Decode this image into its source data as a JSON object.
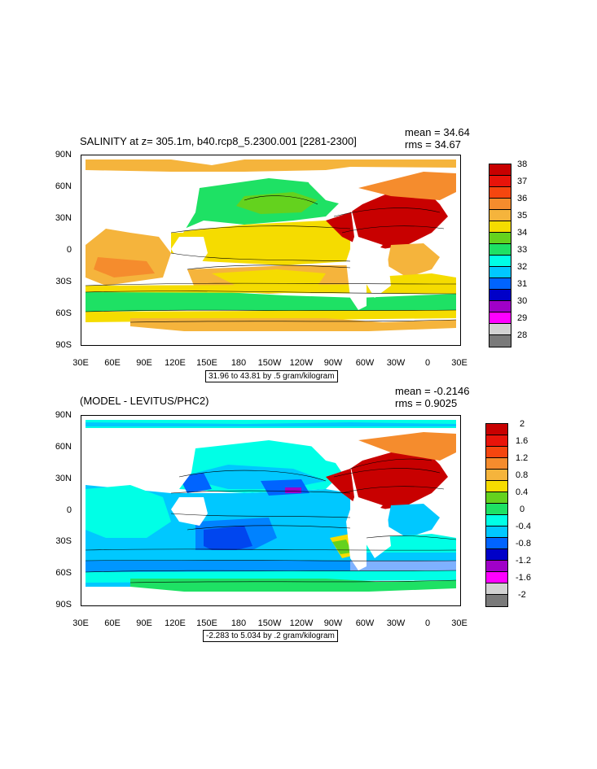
{
  "panels": [
    {
      "title": "SALINITY at z= 305.1m, b40.rcp8_5.2300.001 [2281-2300]",
      "mean": "mean = 34.64",
      "rms": "rms = 34.67",
      "range": "31.96 to 43.81 by .5 gram/kilogram",
      "lat_labels": [
        "90N",
        "60N",
        "30N",
        "0",
        "30S",
        "60S",
        "90S"
      ],
      "lon_labels": [
        "30E",
        "60E",
        "90E",
        "120E",
        "150E",
        "180",
        "150W",
        "120W",
        "90W",
        "60W",
        "30W",
        "0",
        "30E"
      ],
      "colorbar_labels": [
        "38",
        "37",
        "36",
        "35",
        "34",
        "33",
        "32",
        "31",
        "30",
        "29",
        "28"
      ],
      "colorbar_colors": [
        "#c80000",
        "#e8140a",
        "#f5460f",
        "#f58c2d",
        "#f5b43c",
        "#f5dc00",
        "#64d21e",
        "#1ee164",
        "#00ffe6",
        "#00c8ff",
        "#0064ff",
        "#0000c8",
        "#a000c8",
        "#ff00ff",
        "#d2d2d2",
        "#7a7a7a"
      ],
      "cb_index_map": [
        0,
        1,
        2,
        3,
        4,
        5,
        6,
        8,
        9,
        10,
        11,
        12,
        13,
        14,
        15
      ]
    },
    {
      "title": "(MODEL - LEVITUS/PHC2)",
      "mean": "mean = -0.2146",
      "rms": "rms = 0.9025",
      "range": "-2.283 to 5.034 by .2 gram/kilogram",
      "lat_labels": [
        "90N",
        "60N",
        "30N",
        "0",
        "30S",
        "60S",
        "90S"
      ],
      "lon_labels": [
        "30E",
        "60E",
        "90E",
        "120E",
        "150E",
        "180",
        "150W",
        "120W",
        "90W",
        "60W",
        "30W",
        "0",
        "30E"
      ],
      "colorbar_labels": [
        "2",
        "1.6",
        "1.2",
        "0.8",
        "0.4",
        "0",
        "-0.4",
        "-0.8",
        "-1.2",
        "-1.6",
        "-2"
      ]
    }
  ]
}
